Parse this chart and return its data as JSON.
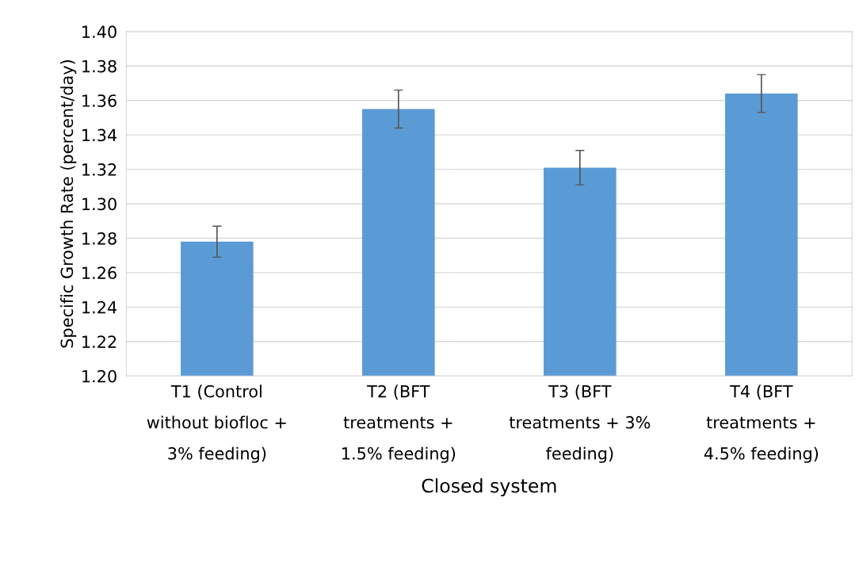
{
  "chart_data": {
    "type": "bar",
    "xlabel": "Closed system",
    "ylabel": "Specific Growth Rate (percent/day)",
    "categories": [
      "T1 (Control\nwithout biofloc +\n3% feeding)",
      "T2 (BFT\ntreatments +\n1.5% feeding)",
      "T3 (BFT\ntreatments + 3%\nfeeding)",
      "T4 (BFT\ntreatments +\n4.5% feeding)"
    ],
    "values": [
      1.278,
      1.355,
      1.321,
      1.364
    ],
    "errors": [
      0.009,
      0.011,
      0.01,
      0.011
    ],
    "color": "#5b9bd5",
    "ylim": [
      1.2,
      1.4
    ],
    "yticks": [
      {
        "value": 1.2,
        "label": "1.20"
      },
      {
        "value": 1.22,
        "label": "1.22"
      },
      {
        "value": 1.24,
        "label": "1.24"
      },
      {
        "value": 1.26,
        "label": "1.26"
      },
      {
        "value": 1.28,
        "label": "1.28"
      },
      {
        "value": 1.3,
        "label": "1.30"
      },
      {
        "value": 1.32,
        "label": "1.32"
      },
      {
        "value": 1.34,
        "label": "1.34"
      },
      {
        "value": 1.36,
        "label": "1.36"
      },
      {
        "value": 1.38,
        "label": "1.38"
      },
      {
        "value": 1.4,
        "label": "1.40"
      }
    ],
    "grid": "y"
  }
}
